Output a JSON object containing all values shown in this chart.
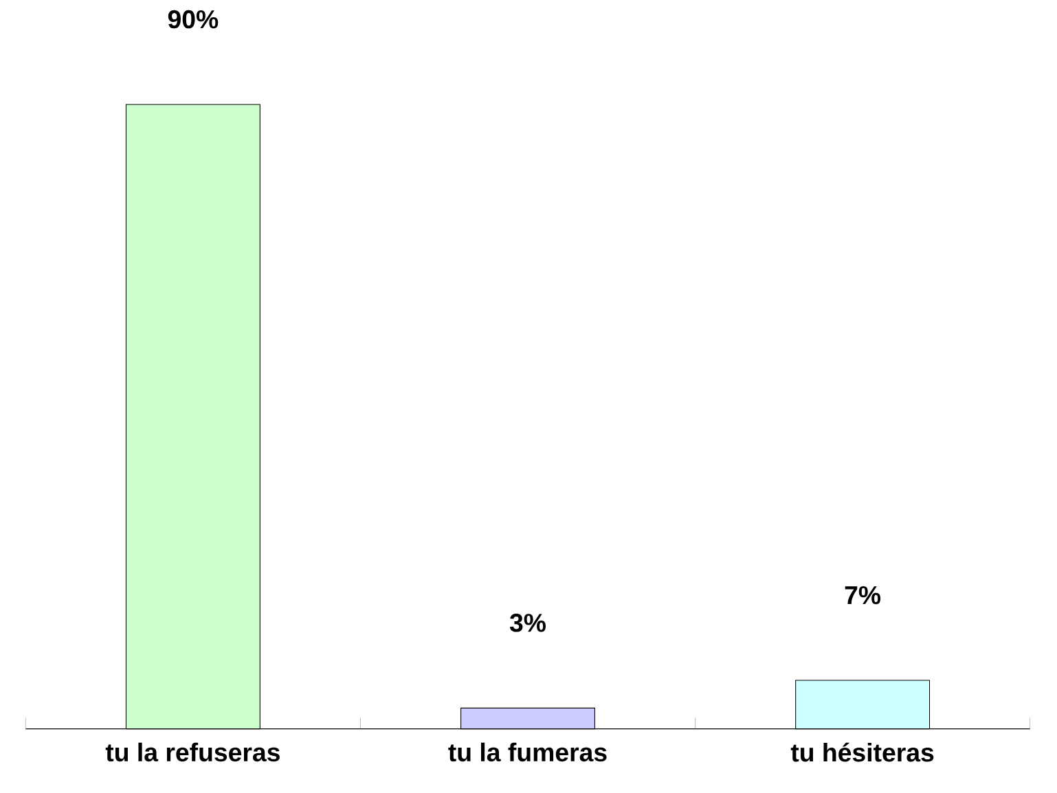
{
  "chart_data": {
    "type": "bar",
    "categories": [
      "tu la refuseras",
      "tu la fumeras",
      "tu hésiteras"
    ],
    "values": [
      90,
      3,
      7
    ],
    "colors": [
      "#ccffcc",
      "#ccccff",
      "#ccffff"
    ],
    "value_labels": [
      "90%",
      "3%",
      "7%"
    ]
  }
}
